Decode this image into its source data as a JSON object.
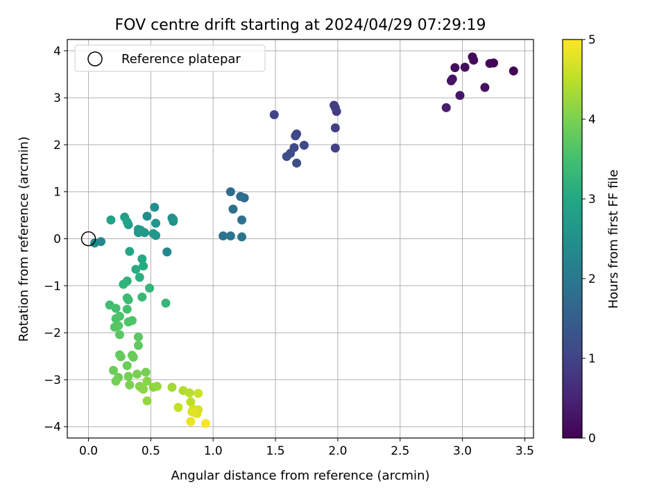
{
  "chart_data": {
    "type": "scatter",
    "title": "FOV centre drift starting at 2024/04/29 07:29:19",
    "xlabel": "Angular distance from reference (arcmin)",
    "ylabel": "Rotation from reference (arcmin)",
    "xlim": [
      -0.17,
      3.57
    ],
    "ylim": [
      -4.24,
      4.24
    ],
    "x_ticks": [
      0.0,
      0.5,
      1.0,
      1.5,
      2.0,
      2.5,
      3.0,
      3.5
    ],
    "x_tick_labels": [
      "0.0",
      "0.5",
      "1.0",
      "1.5",
      "2.0",
      "2.5",
      "3.0",
      "3.5"
    ],
    "y_ticks": [
      -4,
      -3,
      -2,
      -1,
      0,
      1,
      2,
      3,
      4
    ],
    "y_tick_labels": [
      "−4",
      "−3",
      "−2",
      "−1",
      "0",
      "1",
      "2",
      "3",
      "4"
    ],
    "grid": true,
    "legend": {
      "position": "top-left",
      "entries": [
        "Reference platepar"
      ]
    },
    "reference_point": {
      "x": 0.0,
      "y": 0.0,
      "marker": "open-circle",
      "label": "Reference platepar"
    },
    "colorbar": {
      "label": "Hours from first FF file",
      "colormap": "viridis",
      "range": [
        0,
        5
      ],
      "ticks": [
        0,
        1,
        2,
        3,
        4,
        5
      ],
      "tick_labels": [
        "0",
        "1",
        "2",
        "3",
        "4",
        "5"
      ]
    },
    "series": [
      {
        "points": [
          [
            3.41,
            3.57,
            0.02
          ],
          [
            3.25,
            3.74,
            0.05
          ],
          [
            3.22,
            3.73,
            0.07
          ],
          [
            3.08,
            3.87,
            0.1
          ],
          [
            3.09,
            3.8,
            0.12
          ],
          [
            3.02,
            3.65,
            0.15
          ],
          [
            2.94,
            3.64,
            0.17
          ],
          [
            3.18,
            3.22,
            0.2
          ],
          [
            2.92,
            3.4,
            0.22
          ],
          [
            2.91,
            3.36,
            0.25
          ],
          [
            2.98,
            3.05,
            0.3
          ],
          [
            2.87,
            2.79,
            0.4
          ],
          [
            1.99,
            2.71,
            0.85
          ],
          [
            1.97,
            2.84,
            0.88
          ],
          [
            1.98,
            2.79,
            0.9
          ],
          [
            1.98,
            2.36,
            0.92
          ],
          [
            1.98,
            1.93,
            0.95
          ],
          [
            1.49,
            2.64,
            1.0
          ],
          [
            1.67,
            2.23,
            1.05
          ],
          [
            1.66,
            2.19,
            1.08
          ],
          [
            1.73,
            1.99,
            1.1
          ],
          [
            1.65,
            1.94,
            1.12
          ],
          [
            1.62,
            1.82,
            1.15
          ],
          [
            1.59,
            1.75,
            1.18
          ],
          [
            1.67,
            1.61,
            1.2
          ],
          [
            1.14,
            1.0,
            1.75
          ],
          [
            1.22,
            0.9,
            1.78
          ],
          [
            1.25,
            0.87,
            1.8
          ],
          [
            1.16,
            0.63,
            1.82
          ],
          [
            1.23,
            0.4,
            1.85
          ],
          [
            1.08,
            0.06,
            1.88
          ],
          [
            1.14,
            0.06,
            1.9
          ],
          [
            1.23,
            0.04,
            1.92
          ],
          [
            0.63,
            -0.28,
            2.3
          ],
          [
            0.47,
            0.48,
            2.4
          ],
          [
            0.53,
            0.67,
            2.45
          ],
          [
            0.67,
            0.44,
            2.5
          ],
          [
            0.68,
            0.37,
            2.52
          ],
          [
            0.68,
            0.41,
            2.55
          ],
          [
            0.54,
            0.33,
            2.58
          ],
          [
            0.54,
            0.07,
            2.6
          ],
          [
            0.52,
            0.11,
            2.62
          ],
          [
            0.45,
            0.13,
            2.65
          ],
          [
            0.4,
            0.13,
            2.68
          ],
          [
            0.4,
            0.2,
            2.7
          ],
          [
            0.42,
            0.18,
            2.72
          ],
          [
            0.32,
            0.3,
            2.75
          ],
          [
            0.29,
            0.46,
            2.78
          ],
          [
            0.18,
            0.4,
            2.85
          ],
          [
            0.31,
            0.36,
            2.9
          ],
          [
            0.1,
            -0.06,
            2.3
          ],
          [
            0.05,
            -0.09,
            2.35
          ],
          [
            0.33,
            -0.27,
            2.95
          ],
          [
            0.43,
            -0.43,
            3.0
          ],
          [
            0.44,
            -0.58,
            3.05
          ],
          [
            0.38,
            -0.65,
            3.1
          ],
          [
            0.41,
            -0.82,
            3.15
          ],
          [
            0.31,
            -0.9,
            3.2
          ],
          [
            0.28,
            -0.97,
            3.25
          ],
          [
            0.49,
            -1.05,
            3.28
          ],
          [
            0.62,
            -1.37,
            3.3
          ],
          [
            0.43,
            -1.24,
            3.35
          ],
          [
            0.31,
            -1.26,
            3.38
          ],
          [
            0.32,
            -1.3,
            3.4
          ],
          [
            0.17,
            -1.41,
            3.45
          ],
          [
            0.22,
            -1.48,
            3.5
          ],
          [
            0.31,
            -1.5,
            3.52
          ],
          [
            0.25,
            -1.65,
            3.55
          ],
          [
            0.22,
            -1.7,
            3.58
          ],
          [
            0.35,
            -1.74,
            3.6
          ],
          [
            0.32,
            -1.77,
            3.62
          ],
          [
            0.21,
            -1.88,
            3.65
          ],
          [
            0.24,
            -1.85,
            3.68
          ],
          [
            0.25,
            -2.04,
            3.7
          ],
          [
            0.4,
            -2.09,
            3.72
          ],
          [
            0.4,
            -2.27,
            3.75
          ],
          [
            0.25,
            -2.47,
            3.78
          ],
          [
            0.26,
            -2.51,
            3.8
          ],
          [
            0.35,
            -2.48,
            3.82
          ],
          [
            0.36,
            -2.52,
            3.84
          ],
          [
            0.31,
            -2.7,
            3.86
          ],
          [
            0.2,
            -2.8,
            3.88
          ],
          [
            0.24,
            -2.95,
            3.9
          ],
          [
            0.22,
            -3.03,
            3.92
          ],
          [
            0.32,
            -2.93,
            3.94
          ],
          [
            0.46,
            -2.84,
            3.96
          ],
          [
            0.39,
            -2.88,
            3.98
          ],
          [
            0.33,
            -3.11,
            4.0
          ],
          [
            0.43,
            -3.18,
            4.05
          ],
          [
            0.41,
            -3.14,
            4.08
          ],
          [
            0.47,
            -3.03,
            4.1
          ],
          [
            0.44,
            -3.2,
            4.12
          ],
          [
            0.52,
            -3.16,
            4.15
          ],
          [
            0.55,
            -3.14,
            4.18
          ],
          [
            0.47,
            -3.45,
            4.2
          ],
          [
            0.67,
            -3.16,
            4.3
          ],
          [
            0.76,
            -3.23,
            4.4
          ],
          [
            0.81,
            -3.28,
            4.45
          ],
          [
            0.82,
            -3.47,
            4.5
          ],
          [
            0.72,
            -3.59,
            4.55
          ],
          [
            0.88,
            -3.29,
            4.6
          ],
          [
            0.84,
            -3.63,
            4.65
          ],
          [
            0.88,
            -3.64,
            4.68
          ],
          [
            0.83,
            -3.68,
            4.7
          ],
          [
            0.87,
            -3.72,
            4.75
          ],
          [
            0.85,
            -3.7,
            4.78
          ],
          [
            0.82,
            -3.89,
            4.85
          ],
          [
            0.94,
            -3.93,
            4.95
          ]
        ]
      }
    ]
  }
}
